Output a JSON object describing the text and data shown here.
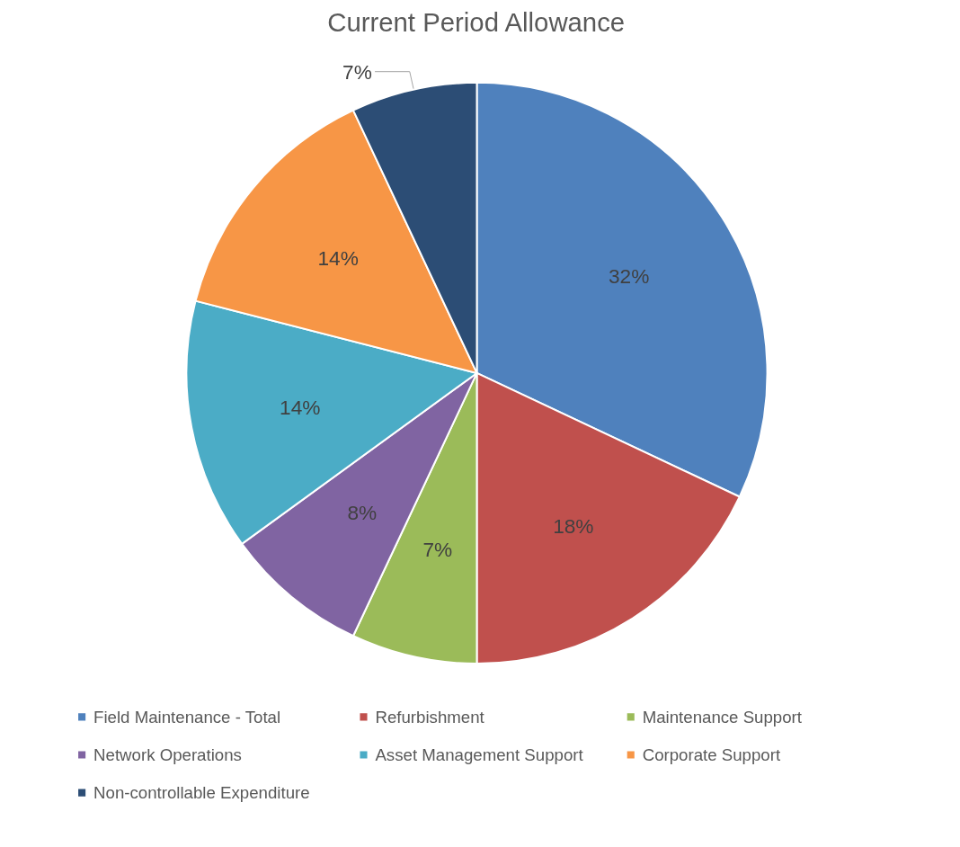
{
  "chart_data": {
    "type": "pie",
    "title": "Current Period Allowance",
    "categories": [
      "Field Maintenance - Total",
      "Refurbishment",
      "Maintenance Support",
      "Network Operations",
      "Asset Management Support",
      "Corporate Support",
      "Non-controllable Expenditure"
    ],
    "values": [
      32,
      18,
      7,
      8,
      14,
      14,
      7
    ],
    "colors": [
      "#4f81bd",
      "#c0504d",
      "#9bbb59",
      "#8064a2",
      "#4bacc6",
      "#f79646",
      "#2c4d75"
    ],
    "value_labels": [
      "32%",
      "18%",
      "7%",
      "8%",
      "14%",
      "14%",
      "7%"
    ],
    "legend": "bottom"
  }
}
